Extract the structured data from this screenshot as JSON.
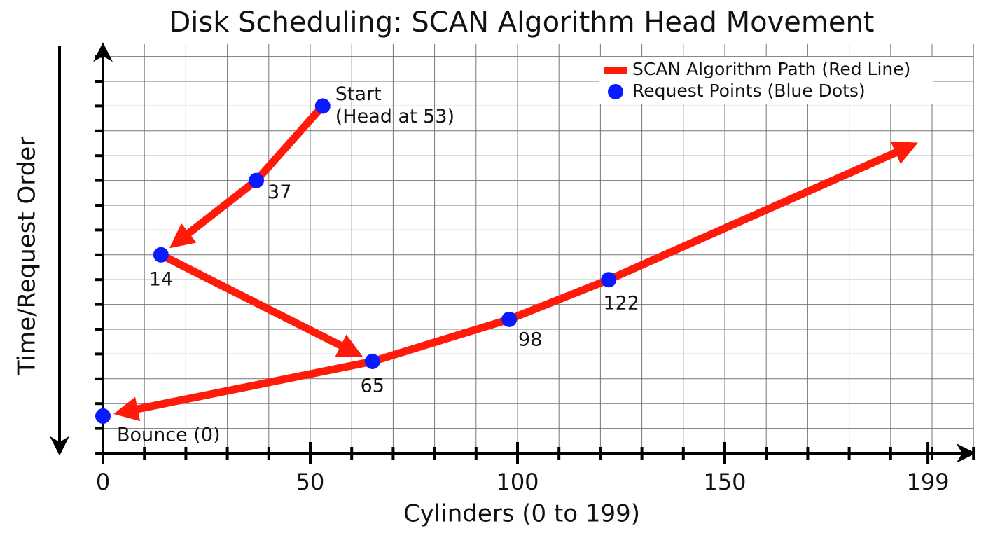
{
  "chart_data": {
    "type": "line",
    "title": "Disk Scheduling: SCAN Algorithm Head Movement",
    "x_label": "Cylinders (0 to 199)",
    "y_label": "Time/Request Order",
    "xlim": [
      0,
      200
    ],
    "ylim": [
      0,
      16.5
    ],
    "xticks": [
      0,
      50,
      100,
      150,
      199
    ],
    "x_grid": [
      0,
      10,
      20,
      30,
      40,
      50,
      60,
      70,
      80,
      90,
      100,
      110,
      120,
      130,
      140,
      150,
      160,
      170,
      180,
      190,
      200,
      210
    ],
    "y_grid": [
      0,
      1,
      2,
      3,
      4,
      5,
      6,
      7,
      8,
      9,
      10,
      11,
      12,
      13,
      14,
      15,
      16
    ],
    "grid": true,
    "legend": "upper right",
    "series": [
      {
        "name": "SCAN Algorithm Path (Red Line)",
        "color": "#ff1a0a",
        "x": [
          53,
          37,
          14,
          65,
          0,
          null,
          65,
          98,
          122,
          199
        ],
        "values": [
          14,
          11,
          8,
          3.7,
          1.5,
          null,
          3.7,
          5.4,
          7,
          12.7
        ]
      },
      {
        "name": "Request Points (Blue Dots)",
        "color": "#0a1aff",
        "x": [
          53,
          37,
          14,
          65,
          98,
          122,
          0
        ],
        "values": [
          14,
          11,
          8,
          3.7,
          5.4,
          7,
          1.5
        ],
        "point_labels": [
          [
            "Start",
            "(Head at 53)"
          ],
          [
            "37"
          ],
          [
            "14"
          ],
          [
            "65"
          ],
          [
            "98"
          ],
          [
            "122"
          ],
          [
            "Bounce (0)"
          ]
        ]
      }
    ]
  }
}
